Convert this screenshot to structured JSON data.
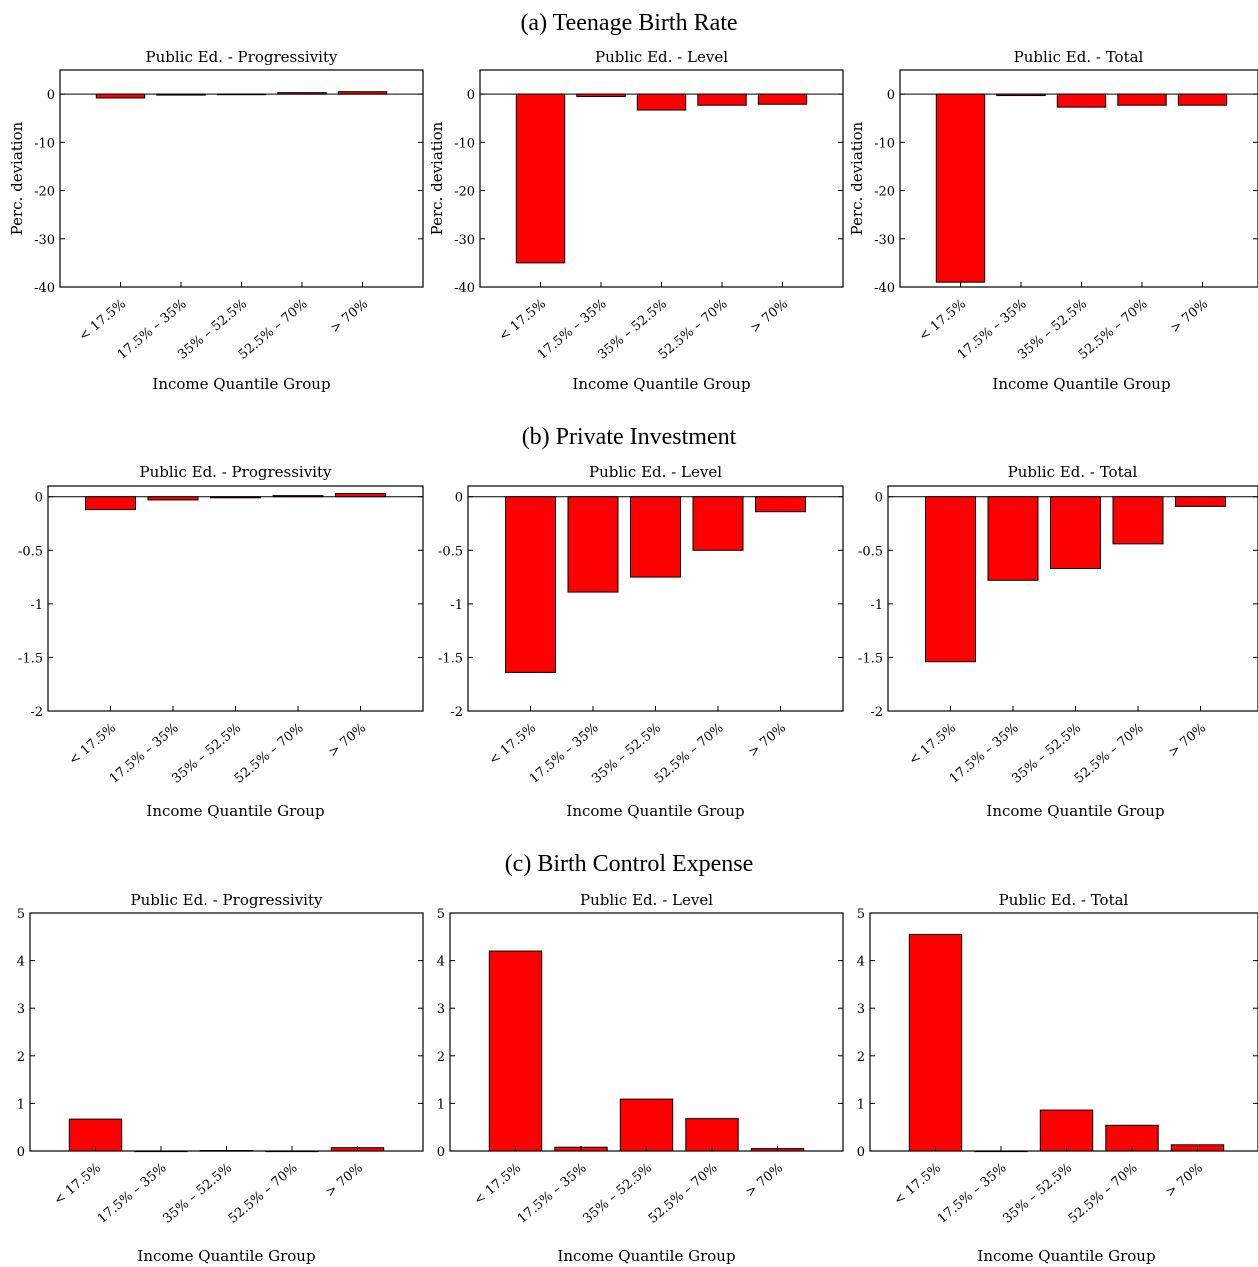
{
  "colors": {
    "bar": "#ff0000",
    "axis": "#000000"
  },
  "sections": [
    {
      "title": "(a) Teenage Birth Rate"
    },
    {
      "title": "(b) Private Investment"
    },
    {
      "title": "(c) Birth Control Expense"
    }
  ],
  "chart_data": [
    {
      "type": "bar",
      "section": 0,
      "title": "Public Ed. - Progressivity",
      "xlabel": "Income Quantile Group",
      "ylabel": "Perc. deviation",
      "categories": [
        "< 17.5%",
        "17.5% – 35%",
        "35% – 52.5%",
        "52.5% – 70%",
        "> 70%"
      ],
      "values": [
        -0.8,
        -0.2,
        -0.1,
        0.3,
        0.5
      ],
      "ylim": [
        -40,
        5
      ],
      "yticks": [
        0,
        -10,
        -20,
        -30,
        -40
      ],
      "ytick_labels": [
        "0",
        "-10",
        "-20",
        "-30",
        "-40"
      ]
    },
    {
      "type": "bar",
      "section": 0,
      "title": "Public Ed. - Level",
      "xlabel": "Income Quantile Group",
      "ylabel": "Perc. deviation",
      "categories": [
        "< 17.5%",
        "17.5% – 35%",
        "35% – 52.5%",
        "52.5% – 70%",
        "> 70%"
      ],
      "values": [
        -35,
        -0.5,
        -3.3,
        -2.3,
        -2.1
      ],
      "ylim": [
        -40,
        5
      ],
      "yticks": [
        0,
        -10,
        -20,
        -30,
        -40
      ],
      "ytick_labels": [
        "0",
        "-10",
        "-20",
        "-30",
        "-40"
      ]
    },
    {
      "type": "bar",
      "section": 0,
      "title": "Public Ed. - Total",
      "xlabel": "Income Quantile Group",
      "ylabel": "Perc. deviation",
      "categories": [
        "< 17.5%",
        "17.5% – 35%",
        "35% – 52.5%",
        "52.5% – 70%",
        "> 70%"
      ],
      "values": [
        -39,
        -0.3,
        -2.7,
        -2.3,
        -2.3
      ],
      "ylim": [
        -40,
        5
      ],
      "yticks": [
        0,
        -10,
        -20,
        -30,
        -40
      ],
      "ytick_labels": [
        "0",
        "-10",
        "-20",
        "-30",
        "-40"
      ]
    },
    {
      "type": "bar",
      "section": 1,
      "title": "Public Ed. - Progressivity",
      "xlabel": "Income Quantile Group",
      "ylabel": "",
      "categories": [
        "< 17.5%",
        "17.5% – 35%",
        "35% – 52.5%",
        "52.5% – 70%",
        "> 70%"
      ],
      "values": [
        -0.12,
        -0.03,
        -0.01,
        0.01,
        0.03
      ],
      "ylim": [
        -2,
        0.1
      ],
      "yticks": [
        0,
        -0.5,
        -1,
        -1.5,
        -2
      ],
      "ytick_labels": [
        "0",
        "-0.5",
        "-1",
        "-1.5",
        "-2"
      ]
    },
    {
      "type": "bar",
      "section": 1,
      "title": "Public Ed. - Level",
      "xlabel": "Income Quantile Group",
      "ylabel": "",
      "categories": [
        "< 17.5%",
        "17.5% – 35%",
        "35% – 52.5%",
        "52.5% – 70%",
        "> 70%"
      ],
      "values": [
        -1.64,
        -0.89,
        -0.75,
        -0.5,
        -0.14
      ],
      "ylim": [
        -2,
        0.1
      ],
      "yticks": [
        0,
        -0.5,
        -1,
        -1.5,
        -2
      ],
      "ytick_labels": [
        "0",
        "-0.5",
        "-1",
        "-1.5",
        "-2"
      ]
    },
    {
      "type": "bar",
      "section": 1,
      "title": "Public Ed. - Total",
      "xlabel": "Income Quantile Group",
      "ylabel": "",
      "categories": [
        "< 17.5%",
        "17.5% – 35%",
        "35% – 52.5%",
        "52.5% – 70%",
        "> 70%"
      ],
      "values": [
        -1.54,
        -0.78,
        -0.67,
        -0.44,
        -0.09
      ],
      "ylim": [
        -2,
        0.1
      ],
      "yticks": [
        0,
        -0.5,
        -1,
        -1.5,
        -2
      ],
      "ytick_labels": [
        "0",
        "-0.5",
        "-1",
        "-1.5",
        "-2"
      ]
    },
    {
      "type": "bar",
      "section": 2,
      "title": "Public Ed. - Progressivity",
      "xlabel": "Income Quantile Group",
      "ylabel": "",
      "categories": [
        "< 17.5%",
        "17.5% – 35%",
        "35% – 52.5%",
        "52.5% – 70%",
        "> 70%"
      ],
      "values": [
        0.67,
        0.0,
        0.01,
        0.0,
        0.07
      ],
      "ylim": [
        0,
        5
      ],
      "yticks": [
        0,
        1,
        2,
        3,
        4,
        5
      ],
      "ytick_labels": [
        "0",
        "1",
        "2",
        "3",
        "4",
        "5"
      ]
    },
    {
      "type": "bar",
      "section": 2,
      "title": "Public Ed. - Level",
      "xlabel": "Income Quantile Group",
      "ylabel": "",
      "categories": [
        "< 17.5%",
        "17.5% – 35%",
        "35% – 52.5%",
        "52.5% – 70%",
        "> 70%"
      ],
      "values": [
        4.2,
        0.08,
        1.09,
        0.68,
        0.05
      ],
      "ylim": [
        0,
        5
      ],
      "yticks": [
        0,
        1,
        2,
        3,
        4,
        5
      ],
      "ytick_labels": [
        "0",
        "1",
        "2",
        "3",
        "4",
        "5"
      ]
    },
    {
      "type": "bar",
      "section": 2,
      "title": "Public Ed. - Total",
      "xlabel": "Income Quantile Group",
      "ylabel": "",
      "categories": [
        "< 17.5%",
        "17.5% – 35%",
        "35% – 52.5%",
        "52.5% – 70%",
        "> 70%"
      ],
      "values": [
        4.55,
        0.0,
        0.86,
        0.54,
        0.13
      ],
      "ylim": [
        0,
        5
      ],
      "yticks": [
        0,
        1,
        2,
        3,
        4,
        5
      ],
      "ytick_labels": [
        "0",
        "1",
        "2",
        "3",
        "4",
        "5"
      ]
    }
  ]
}
